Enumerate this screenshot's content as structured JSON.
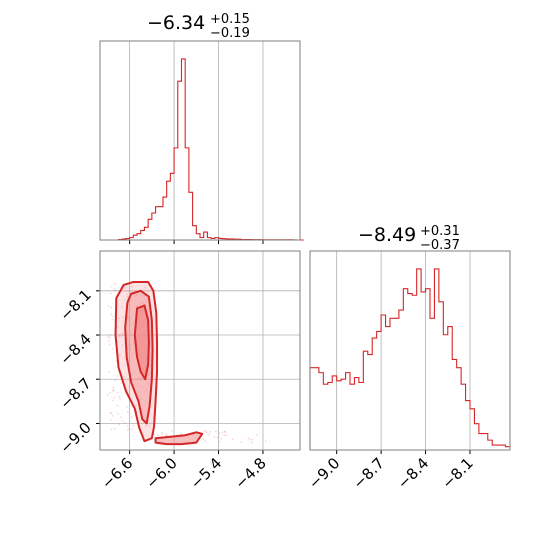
{
  "figure_type": "corner plot",
  "colors": {
    "accent": "#d62728",
    "grid": "#b0b0b0",
    "frame": "#7f7f7f",
    "fill": "#f28b8d"
  },
  "chart_data": [
    {
      "type": "histogram",
      "panel": "marginal-x",
      "title": {
        "value": "−6.34",
        "upper": "+0.15",
        "lower": "−0.19"
      },
      "xlim": [
        -7.0,
        -4.3
      ],
      "grid": true,
      "bin_edges_start": -7.0,
      "bin_width": 0.05,
      "counts": [
        0,
        0,
        0,
        0,
        0,
        0.3,
        0.6,
        0.9,
        1.5,
        3,
        4,
        6,
        8,
        13,
        17,
        21,
        21,
        27,
        37,
        42,
        58,
        100,
        114,
        58,
        30,
        9,
        4,
        1.5,
        5,
        1.5,
        1,
        1.5,
        1,
        0.8,
        0.7,
        0.7,
        0.5,
        0.5,
        0.3,
        0.3,
        0.3,
        0.2,
        0.2,
        0.2,
        0.1,
        0.1,
        0.1,
        0.1,
        0.1,
        0.1,
        0.1,
        0.1,
        0.05,
        0,
        0
      ]
    },
    {
      "type": "histogram",
      "panel": "marginal-y",
      "title": {
        "value": "−8.49",
        "upper": "+0.31",
        "lower": "−0.37"
      },
      "xlim": [
        -9.18,
        -7.83
      ],
      "grid": true,
      "bin_edges_start": -9.18,
      "bin_width": 0.03,
      "counts": [
        50,
        50,
        47,
        40,
        41,
        45,
        42,
        43,
        47,
        40,
        44,
        41,
        60,
        58,
        68,
        72,
        82,
        75,
        80,
        80,
        85,
        98,
        95,
        94,
        110,
        96,
        98,
        80,
        110,
        90,
        70,
        75,
        55,
        50,
        40,
        30,
        25,
        16,
        10,
        10,
        6,
        3,
        3,
        3,
        2
      ]
    },
    {
      "type": "contour",
      "panel": "joint",
      "xlim": [
        -7.0,
        -4.3
      ],
      "ylim": [
        -9.18,
        -7.83
      ],
      "grid": true,
      "levels": [
        {
          "name": "outer",
          "points": [
            [
              -6.68,
              -8.06
            ],
            [
              -6.55,
              -8.04
            ],
            [
              -6.35,
              -8.04
            ],
            [
              -6.28,
              -8.1
            ],
            [
              -6.24,
              -8.25
            ],
            [
              -6.23,
              -8.45
            ],
            [
              -6.23,
              -8.65
            ],
            [
              -6.25,
              -8.85
            ],
            [
              -6.27,
              -9.02
            ],
            [
              -6.3,
              -9.1
            ],
            [
              -6.4,
              -9.12
            ],
            [
              -6.47,
              -9.03
            ],
            [
              -6.53,
              -8.9
            ],
            [
              -6.65,
              -8.78
            ],
            [
              -6.75,
              -8.62
            ],
            [
              -6.79,
              -8.4
            ],
            [
              -6.78,
              -8.15
            ]
          ]
        },
        {
          "name": "middle",
          "points": [
            [
              -6.58,
              -8.12
            ],
            [
              -6.45,
              -8.1
            ],
            [
              -6.34,
              -8.14
            ],
            [
              -6.3,
              -8.3
            ],
            [
              -6.29,
              -8.5
            ],
            [
              -6.3,
              -8.7
            ],
            [
              -6.33,
              -8.88
            ],
            [
              -6.37,
              -9.0
            ],
            [
              -6.43,
              -8.97
            ],
            [
              -6.48,
              -8.85
            ],
            [
              -6.58,
              -8.72
            ],
            [
              -6.64,
              -8.55
            ],
            [
              -6.66,
              -8.35
            ],
            [
              -6.63,
              -8.18
            ]
          ]
        },
        {
          "name": "inner",
          "points": [
            [
              -6.5,
              -8.22
            ],
            [
              -6.4,
              -8.2
            ],
            [
              -6.35,
              -8.3
            ],
            [
              -6.34,
              -8.45
            ],
            [
              -6.35,
              -8.6
            ],
            [
              -6.39,
              -8.7
            ],
            [
              -6.45,
              -8.65
            ],
            [
              -6.5,
              -8.55
            ],
            [
              -6.53,
              -8.4
            ]
          ]
        },
        {
          "name": "tail",
          "points": [
            [
              -6.25,
              -9.1
            ],
            [
              -6.05,
              -9.09
            ],
            [
              -5.85,
              -9.08
            ],
            [
              -5.7,
              -9.06
            ],
            [
              -5.62,
              -9.07
            ],
            [
              -5.7,
              -9.13
            ],
            [
              -5.9,
              -9.14
            ],
            [
              -6.1,
              -9.14
            ],
            [
              -6.25,
              -9.13
            ]
          ]
        }
      ]
    }
  ],
  "axes": {
    "x_ticks": [
      "−6.6",
      "−6.0",
      "−5.4",
      "−4.8"
    ],
    "x_tick_values": [
      -6.6,
      -6.0,
      -5.4,
      -4.8
    ],
    "y_ticks": [
      "−8.1",
      "−8.4",
      "−8.7",
      "−9.0"
    ],
    "y_tick_values": [
      -8.1,
      -8.4,
      -8.7,
      -9.0
    ]
  }
}
